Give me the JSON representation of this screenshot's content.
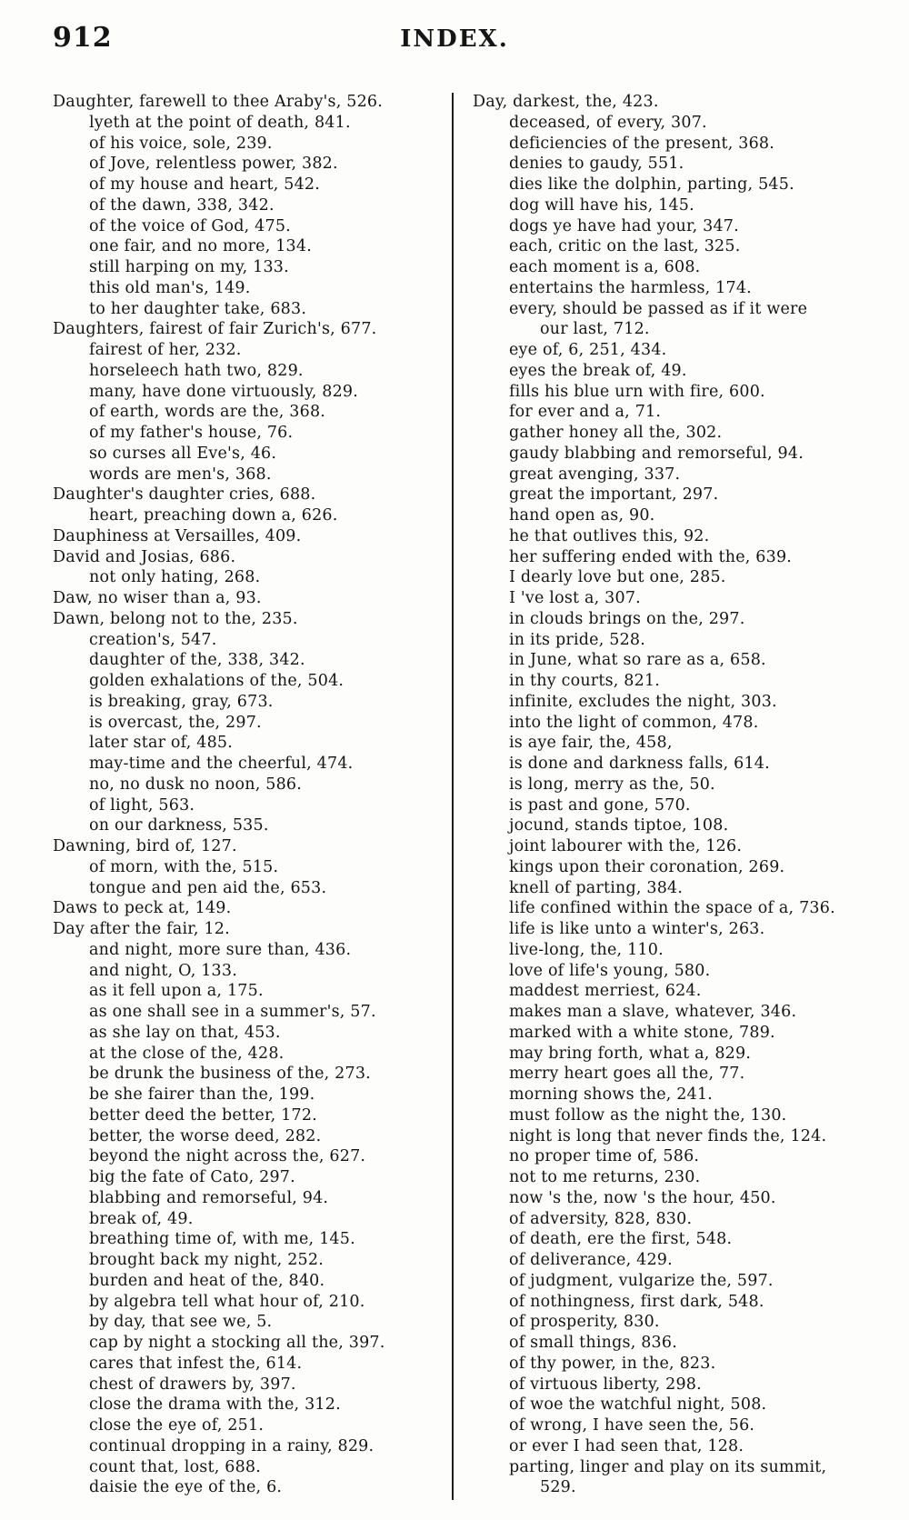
{
  "page": {
    "page_number": "912",
    "title": "INDEX."
  },
  "columns": {
    "left": [
      {
        "t": "main",
        "text": "Daughter, farewell to thee Araby's, 526."
      },
      {
        "t": "sub",
        "text": "lyeth at the point of death, 841."
      },
      {
        "t": "sub",
        "text": "of his voice, sole, 239."
      },
      {
        "t": "sub",
        "text": "of Jove, relentless power, 382."
      },
      {
        "t": "sub",
        "text": "of my house and heart, 542."
      },
      {
        "t": "sub",
        "text": "of the dawn, 338, 342."
      },
      {
        "t": "sub",
        "text": "of the voice of God, 475."
      },
      {
        "t": "sub",
        "text": "one fair, and no more, 134."
      },
      {
        "t": "sub",
        "text": "still harping on my, 133."
      },
      {
        "t": "sub",
        "text": "this old man's, 149."
      },
      {
        "t": "sub",
        "text": "to her daughter take, 683."
      },
      {
        "t": "main",
        "text": "Daughters, fairest of fair Zurich's, 677."
      },
      {
        "t": "sub",
        "text": "fairest of her, 232."
      },
      {
        "t": "sub",
        "text": "horseleech hath two, 829."
      },
      {
        "t": "sub",
        "text": "many, have done virtuously, 829."
      },
      {
        "t": "sub",
        "text": "of earth, words are the, 368."
      },
      {
        "t": "sub",
        "text": "of my father's house, 76."
      },
      {
        "t": "sub",
        "text": "so curses all Eve's, 46."
      },
      {
        "t": "sub",
        "text": "words are men's, 368."
      },
      {
        "t": "main",
        "text": "Daughter's daughter cries, 688."
      },
      {
        "t": "sub",
        "text": "heart, preaching down a, 626."
      },
      {
        "t": "main",
        "text": "Dauphiness at Versailles, 409."
      },
      {
        "t": "main",
        "text": "David and Josias, 686."
      },
      {
        "t": "sub",
        "text": "not only hating, 268."
      },
      {
        "t": "main",
        "text": "Daw, no wiser than a, 93."
      },
      {
        "t": "main",
        "text": "Dawn, belong not to the, 235."
      },
      {
        "t": "sub",
        "text": "creation's, 547."
      },
      {
        "t": "sub",
        "text": "daughter of the, 338, 342."
      },
      {
        "t": "sub",
        "text": "golden exhalations of the, 504."
      },
      {
        "t": "sub",
        "text": "is breaking, gray, 673."
      },
      {
        "t": "sub",
        "text": "is overcast, the, 297."
      },
      {
        "t": "sub",
        "text": "later star of, 485."
      },
      {
        "t": "sub",
        "text": "may-time and the cheerful, 474."
      },
      {
        "t": "sub",
        "text": "no, no dusk no noon, 586."
      },
      {
        "t": "sub",
        "text": "of light, 563."
      },
      {
        "t": "sub",
        "text": "on our darkness, 535."
      },
      {
        "t": "main",
        "text": "Dawning, bird of, 127."
      },
      {
        "t": "sub",
        "text": "of morn, with the, 515."
      },
      {
        "t": "sub",
        "text": "tongue and pen aid the, 653."
      },
      {
        "t": "main",
        "text": "Daws to peck at, 149."
      },
      {
        "t": "main",
        "text": "Day after the fair, 12."
      },
      {
        "t": "sub",
        "text": "and night, more sure than, 436."
      },
      {
        "t": "sub",
        "text": "and night, O, 133."
      },
      {
        "t": "sub",
        "text": "as it fell upon a, 175."
      },
      {
        "t": "sub",
        "text": "as one shall see in a summer's, 57."
      },
      {
        "t": "sub",
        "text": "as she lay on that, 453."
      },
      {
        "t": "sub",
        "text": "at the close of the, 428."
      },
      {
        "t": "sub",
        "text": "be drunk the business of the, 273."
      },
      {
        "t": "sub",
        "text": "be she fairer than the, 199."
      },
      {
        "t": "sub",
        "text": "better deed the better, 172."
      },
      {
        "t": "sub",
        "text": "better, the worse deed, 282."
      },
      {
        "t": "sub",
        "text": "beyond the night across the, 627."
      },
      {
        "t": "sub",
        "text": "big the fate of Cato, 297."
      },
      {
        "t": "sub",
        "text": "blabbing and remorseful, 94."
      },
      {
        "t": "sub",
        "text": "break of, 49."
      },
      {
        "t": "sub",
        "text": "breathing time of, with me, 145."
      },
      {
        "t": "sub",
        "text": "brought back my night, 252."
      },
      {
        "t": "sub",
        "text": "burden and heat of the, 840."
      },
      {
        "t": "sub",
        "text": "by algebra tell what hour of, 210."
      },
      {
        "t": "sub",
        "text": "by day, that see we, 5."
      },
      {
        "t": "sub",
        "text": "cap by night a stocking all the, 397."
      },
      {
        "t": "sub",
        "text": "cares that infest the, 614."
      },
      {
        "t": "sub",
        "text": "chest of drawers by, 397."
      },
      {
        "t": "sub",
        "text": "close the drama with the, 312."
      },
      {
        "t": "sub",
        "text": "close the eye of, 251."
      },
      {
        "t": "sub",
        "text": "continual dropping in a rainy, 829."
      },
      {
        "t": "sub",
        "text": "count that, lost, 688."
      },
      {
        "t": "sub",
        "text": "daisie the eye of the, 6."
      }
    ],
    "right": [
      {
        "t": "main",
        "text": "Day, darkest, the, 423."
      },
      {
        "t": "sub",
        "text": "deceased, of every, 307."
      },
      {
        "t": "sub",
        "text": "deficiencies of the present, 368."
      },
      {
        "t": "sub",
        "text": "denies to gaudy, 551."
      },
      {
        "t": "sub",
        "text": "dies like the dolphin, parting, 545."
      },
      {
        "t": "sub",
        "text": "dog will have his, 145."
      },
      {
        "t": "sub",
        "text": "dogs ye have had your, 347."
      },
      {
        "t": "sub",
        "text": "each, critic on the last, 325."
      },
      {
        "t": "sub",
        "text": "each moment is a, 608."
      },
      {
        "t": "sub",
        "text": "entertains the harmless, 174."
      },
      {
        "t": "sub",
        "text": "every, should be passed as if it were"
      },
      {
        "t": "cont",
        "text": "our last, 712."
      },
      {
        "t": "sub",
        "text": "eye of, 6, 251, 434."
      },
      {
        "t": "sub",
        "text": "eyes the break of, 49."
      },
      {
        "t": "sub",
        "text": "fills his blue urn with fire, 600."
      },
      {
        "t": "sub",
        "text": "for ever and a, 71."
      },
      {
        "t": "sub",
        "text": "gather honey all the, 302."
      },
      {
        "t": "sub",
        "text": "gaudy blabbing and remorseful, 94."
      },
      {
        "t": "sub",
        "text": "great avenging, 337."
      },
      {
        "t": "sub",
        "text": "great the important, 297."
      },
      {
        "t": "sub",
        "text": "hand open as, 90."
      },
      {
        "t": "sub",
        "text": "he that outlives this, 92."
      },
      {
        "t": "sub",
        "text": "her suffering ended with the, 639."
      },
      {
        "t": "sub",
        "text": "I dearly love but one, 285."
      },
      {
        "t": "sub",
        "text": "I 've lost a, 307."
      },
      {
        "t": "sub",
        "text": "in clouds brings on the, 297."
      },
      {
        "t": "sub",
        "text": "in its pride, 528."
      },
      {
        "t": "sub",
        "text": "in June, what so rare as a, 658."
      },
      {
        "t": "sub",
        "text": "in thy courts, 821."
      },
      {
        "t": "sub",
        "text": "infinite, excludes the night, 303."
      },
      {
        "t": "sub",
        "text": "into the light of common, 478."
      },
      {
        "t": "sub",
        "text": "is aye fair, the, 458,"
      },
      {
        "t": "sub",
        "text": "is done and darkness falls, 614."
      },
      {
        "t": "sub",
        "text": "is long, merry as the, 50."
      },
      {
        "t": "sub",
        "text": "is past and gone, 570."
      },
      {
        "t": "sub",
        "text": "jocund, stands tiptoe, 108."
      },
      {
        "t": "sub",
        "text": "joint labourer with the, 126."
      },
      {
        "t": "sub",
        "text": "kings upon their coronation, 269."
      },
      {
        "t": "sub",
        "text": "knell of parting, 384."
      },
      {
        "t": "sub",
        "text": "life confined within the space of a, 736."
      },
      {
        "t": "sub",
        "text": "life is like unto a winter's, 263."
      },
      {
        "t": "sub",
        "text": "live-long, the, 110."
      },
      {
        "t": "sub",
        "text": "love of life's young, 580."
      },
      {
        "t": "sub",
        "text": "maddest merriest, 624."
      },
      {
        "t": "sub",
        "text": "makes man a slave, whatever, 346."
      },
      {
        "t": "sub",
        "text": "marked with a white stone, 789."
      },
      {
        "t": "sub",
        "text": "may bring forth, what a, 829."
      },
      {
        "t": "sub",
        "text": "merry heart goes all the, 77."
      },
      {
        "t": "sub",
        "text": "morning shows the, 241."
      },
      {
        "t": "sub",
        "text": "must follow as the night the, 130."
      },
      {
        "t": "sub",
        "text": "night is long that never finds the, 124."
      },
      {
        "t": "sub",
        "text": "no proper time of, 586."
      },
      {
        "t": "sub",
        "text": "not to me returns, 230."
      },
      {
        "t": "sub",
        "text": "now 's the, now 's the hour, 450."
      },
      {
        "t": "sub",
        "text": "of adversity, 828, 830."
      },
      {
        "t": "sub",
        "text": "of death, ere the first, 548."
      },
      {
        "t": "sub",
        "text": "of deliverance, 429."
      },
      {
        "t": "sub",
        "text": "of judgment, vulgarize the, 597."
      },
      {
        "t": "sub",
        "text": "of nothingness, first dark, 548."
      },
      {
        "t": "sub",
        "text": "of prosperity, 830."
      },
      {
        "t": "sub",
        "text": "of small things, 836."
      },
      {
        "t": "sub",
        "text": "of thy power, in the, 823."
      },
      {
        "t": "sub",
        "text": "of virtuous liberty, 298."
      },
      {
        "t": "sub",
        "text": "of woe the watchful night, 508."
      },
      {
        "t": "sub",
        "text": "of wrong, I have seen the, 56."
      },
      {
        "t": "sub",
        "text": "or ever I had seen that, 128."
      },
      {
        "t": "sub",
        "text": "parting, linger and play on its summit,"
      },
      {
        "t": "cont",
        "text": "529."
      }
    ]
  }
}
